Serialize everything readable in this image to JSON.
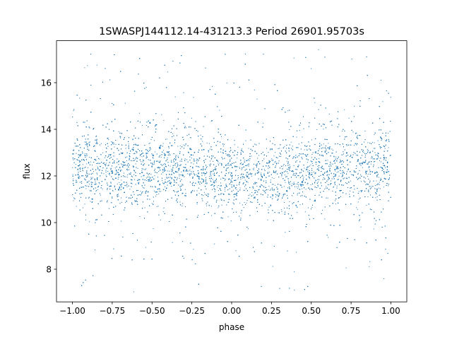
{
  "chart_data": {
    "type": "scatter",
    "title": "1SWASPJ144112.14-431213.3 Period 26901.95703s",
    "xlabel": "phase",
    "ylabel": "flux",
    "xlim": [
      -1.1,
      1.1
    ],
    "ylim": [
      6.6,
      17.8
    ],
    "x_ticks": [
      -1.0,
      -0.75,
      -0.5,
      -0.25,
      0.0,
      0.25,
      0.5,
      0.75,
      1.0
    ],
    "x_tick_labels": [
      "−1.00",
      "−0.75",
      "−0.50",
      "−0.25",
      "0.00",
      "0.25",
      "0.50",
      "0.75",
      "1.00"
    ],
    "y_ticks": [
      8,
      10,
      12,
      14,
      16
    ],
    "y_tick_labels": [
      "8",
      "10",
      "12",
      "14",
      "16"
    ],
    "grid": false,
    "legend": "none",
    "series": [
      {
        "color": "#1f77b4",
        "x_range": [
          -1.0,
          1.0
        ],
        "y_range": [
          7.0,
          17.5
        ],
        "core_mean_by_phase": [
          {
            "x": -1.0,
            "y": 12.4
          },
          {
            "x": -0.75,
            "y": 12.3
          },
          {
            "x": -0.5,
            "y": 12.2
          },
          {
            "x": -0.25,
            "y": 12.3
          },
          {
            "x": 0.0,
            "y": 12.0
          },
          {
            "x": 0.25,
            "y": 12.0
          },
          {
            "x": 0.5,
            "y": 12.2
          },
          {
            "x": 0.75,
            "y": 12.3
          },
          {
            "x": 1.0,
            "y": 12.4
          }
        ],
        "core_half_width": 1.6
      }
    ]
  }
}
